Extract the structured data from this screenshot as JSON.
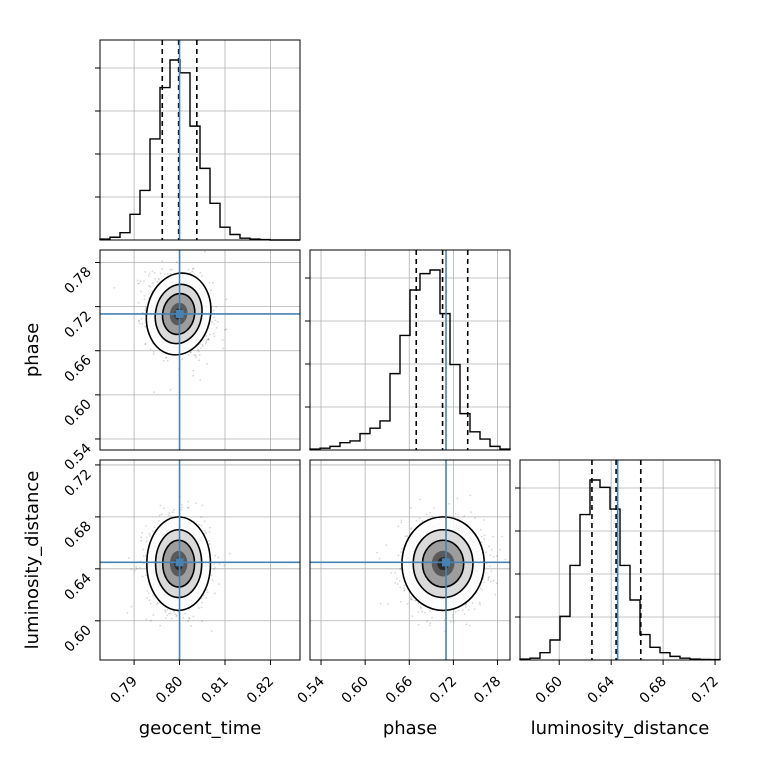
{
  "chart_data": {
    "type": "corner",
    "parameters": [
      "geocent_time",
      "phase",
      "luminosity_distance"
    ],
    "axis_labels": {
      "geocent_time": "geocent_time",
      "phase": "phase",
      "luminosity_distance": "luminosity_distance"
    },
    "ranges": {
      "geocent_time": [
        0.7825,
        0.8265
      ],
      "phase": [
        0.525,
        0.797
      ],
      "luminosity_distance": [
        0.5698,
        0.7238
      ]
    },
    "ticks": {
      "geocent_time": [
        "0.79",
        "0.80",
        "0.81",
        "0.82"
      ],
      "phase": [
        "0.54",
        "0.60",
        "0.66",
        "0.72",
        "0.78"
      ],
      "luminosity_distance": [
        "0.60",
        "0.64",
        "0.68",
        "0.72"
      ]
    },
    "truths": {
      "geocent_time": 0.8,
      "phase": 0.71,
      "luminosity_distance": 0.645
    },
    "quantiles": {
      "geocent_time": [
        0.7962,
        0.7998,
        0.8038
      ],
      "phase": [
        0.6695,
        0.7053,
        0.7395
      ],
      "luminosity_distance": [
        0.6252,
        0.6438,
        0.6628
      ]
    },
    "histograms": {
      "geocent_time": {
        "bins": 20,
        "counts": [
          0.005,
          0.015,
          0.04,
          0.14,
          0.27,
          0.55,
          0.83,
          0.98,
          0.91,
          0.62,
          0.39,
          0.2,
          0.07,
          0.03,
          0.01,
          0.005,
          0.002,
          0,
          0,
          0
        ]
      },
      "phase": {
        "bins": 20,
        "counts": [
          0.005,
          0.01,
          0.02,
          0.04,
          0.05,
          0.09,
          0.12,
          0.16,
          0.42,
          0.63,
          0.88,
          0.97,
          0.99,
          0.75,
          0.47,
          0.2,
          0.1,
          0.06,
          0.02,
          0.005
        ]
      },
      "luminosity_distance": {
        "bins": 20,
        "counts": [
          0.005,
          0.01,
          0.04,
          0.11,
          0.24,
          0.52,
          0.8,
          0.99,
          0.95,
          0.83,
          0.52,
          0.33,
          0.14,
          0.07,
          0.04,
          0.02,
          0.01,
          0.005,
          0.003,
          0.002
        ]
      }
    },
    "joint_distributions": [
      {
        "x": "geocent_time",
        "y": "phase",
        "center": [
          0.7998,
          0.71
        ],
        "sd": [
          0.0035,
          0.028
        ],
        "rho": -0.2
      },
      {
        "x": "geocent_time",
        "y": "luminosity_distance",
        "center": [
          0.7998,
          0.644
        ],
        "sd": [
          0.0035,
          0.018
        ],
        "rho": 0
      },
      {
        "x": "phase",
        "y": "luminosity_distance",
        "center": [
          0.706,
          0.644
        ],
        "sd": [
          0.028,
          0.018
        ],
        "rho": 0
      }
    ],
    "contour_levels": 3,
    "grid": true,
    "truth_color": "#4682b4",
    "histogram_color": "#000000",
    "quantile_line_style": "dashed"
  }
}
